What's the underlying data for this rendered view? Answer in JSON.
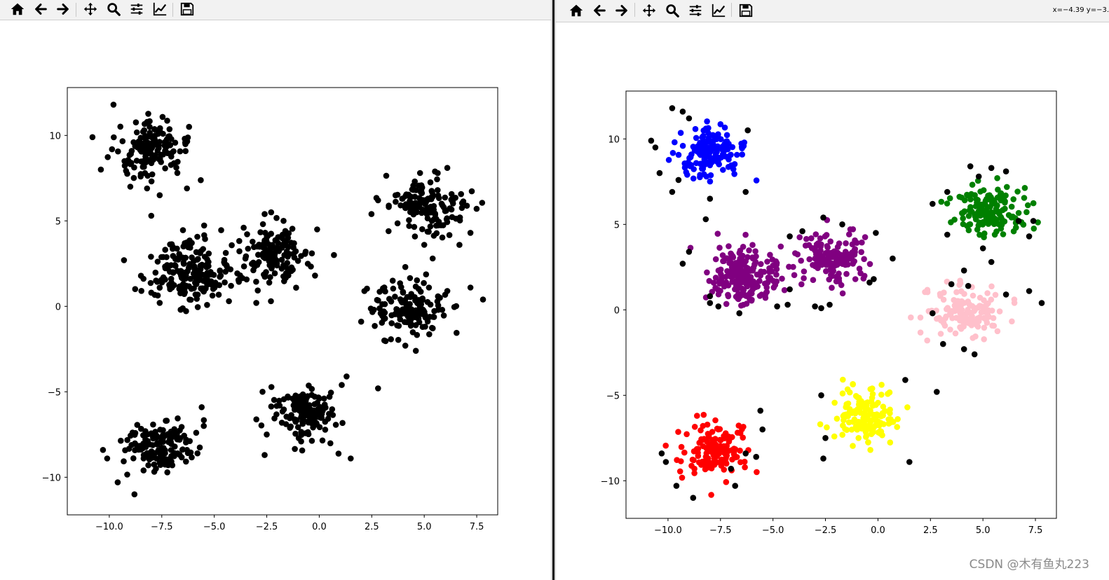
{
  "toolbar": {
    "icons": [
      "home-icon",
      "back-arrow-icon",
      "forward-arrow-icon",
      "pan-icon",
      "zoom-icon",
      "subplots-icon",
      "edit-axes-icon",
      "save-icon"
    ]
  },
  "right_window": {
    "coords_readout": "x=−4.39 y=−3."
  },
  "watermark": "CSDN @木有鱼丸223",
  "colors": {
    "background": "#ffffff",
    "axes_frame": "#000000",
    "unclustered_points": "#000000",
    "cluster_blue": "#0000ff",
    "cluster_purple": "#800080",
    "cluster_green": "#008000",
    "cluster_pink": "#ffc0cb",
    "cluster_red": "#ff0000",
    "cluster_yellow": "#ffff00"
  },
  "chart_data": [
    {
      "type": "scatter",
      "title": "",
      "xlabel": "",
      "ylabel": "",
      "xlim": [
        -12.0,
        8.5
      ],
      "ylim": [
        -12.2,
        12.8
      ],
      "xticks": [
        -10.0,
        -7.5,
        -5.0,
        -2.5,
        0.0,
        2.5,
        5.0,
        7.5
      ],
      "xtick_labels": [
        "−10.0",
        "−7.5",
        "−5.0",
        "−2.5",
        "0.0",
        "2.5",
        "5.0",
        "7.5"
      ],
      "yticks": [
        10,
        5,
        0,
        -5,
        -10
      ],
      "ytick_labels": [
        "10",
        "5",
        "0",
        "−5",
        "−10"
      ],
      "grid": false,
      "series": [
        {
          "color": "#000000",
          "clusters": [
            {
              "center": [
                -8.1,
                9.1
              ],
              "spread": [
                0.85,
                0.9
              ],
              "count": 140
            },
            {
              "center": [
                -6.3,
                2.0
              ],
              "spread": [
                0.95,
                0.9
              ],
              "count": 190
            },
            {
              "center": [
                -2.2,
                3.0
              ],
              "spread": [
                0.8,
                0.85
              ],
              "count": 140
            },
            {
              "center": [
                5.2,
                5.8
              ],
              "spread": [
                0.9,
                0.9
              ],
              "count": 140
            },
            {
              "center": [
                4.3,
                -0.2
              ],
              "spread": [
                0.95,
                0.8
              ],
              "count": 140
            },
            {
              "center": [
                -0.6,
                -6.2
              ],
              "spread": [
                0.75,
                0.8
              ],
              "count": 140
            },
            {
              "center": [
                -7.8,
                -8.2
              ],
              "spread": [
                0.85,
                0.85
              ],
              "count": 140
            }
          ]
        },
        {
          "color": "#000000",
          "points": [
            [
              -10.8,
              9.9
            ],
            [
              -10.4,
              8.0
            ],
            [
              -9.8,
              11.8
            ],
            [
              -9.0,
              7.0
            ],
            [
              -8.2,
              6.9
            ],
            [
              -7.6,
              6.5
            ],
            [
              -6.3,
              6.9
            ],
            [
              -6.2,
              10.5
            ],
            [
              -8.0,
              5.3
            ],
            [
              -9.3,
              2.7
            ],
            [
              -8.0,
              0.8
            ],
            [
              -7.6,
              0.2
            ],
            [
              -6.6,
              -0.2
            ],
            [
              -4.3,
              0.3
            ],
            [
              -3.6,
              4.6
            ],
            [
              -4.2,
              1.2
            ],
            [
              -2.6,
              5.4
            ],
            [
              -1.7,
              5.0
            ],
            [
              -0.1,
              4.5
            ],
            [
              0.7,
              3.0
            ],
            [
              -0.2,
              1.8
            ],
            [
              -2.3,
              0.3
            ],
            [
              -3.0,
              0.2
            ],
            [
              2.8,
              6.2
            ],
            [
              3.3,
              4.4
            ],
            [
              4.8,
              7.8
            ],
            [
              6.1,
              8.1
            ],
            [
              6.7,
              5.2
            ],
            [
              7.2,
              4.3
            ],
            [
              5.0,
              3.6
            ],
            [
              4.1,
              2.3
            ],
            [
              3.5,
              1.5
            ],
            [
              2.6,
              -0.2
            ],
            [
              3.1,
              -2.0
            ],
            [
              4.1,
              -2.3
            ],
            [
              4.6,
              -2.6
            ],
            [
              6.1,
              0.9
            ],
            [
              7.2,
              1.1
            ],
            [
              7.8,
              0.4
            ],
            [
              5.4,
              2.8
            ],
            [
              -2.7,
              -5.0
            ],
            [
              -2.5,
              -7.5
            ],
            [
              -2.6,
              -8.7
            ],
            [
              1.3,
              -4.1
            ],
            [
              1.5,
              -8.9
            ],
            [
              2.8,
              -4.8
            ],
            [
              -5.6,
              -5.9
            ],
            [
              -5.5,
              -7.0
            ],
            [
              -5.8,
              -8.6
            ],
            [
              -6.3,
              -8.4
            ],
            [
              -7.0,
              -9.3
            ],
            [
              -8.8,
              -11.0
            ],
            [
              -9.6,
              -10.3
            ],
            [
              -10.1,
              -8.9
            ],
            [
              -10.3,
              -8.4
            ],
            [
              -4.5,
              1.4
            ]
          ]
        }
      ]
    },
    {
      "type": "scatter",
      "title": "",
      "xlabel": "",
      "ylabel": "",
      "xlim": [
        -12.0,
        8.5
      ],
      "ylim": [
        -12.2,
        12.8
      ],
      "xticks": [
        -10.0,
        -7.5,
        -5.0,
        -2.5,
        0.0,
        2.5,
        5.0,
        7.5
      ],
      "xtick_labels": [
        "−10.0",
        "−7.5",
        "−5.0",
        "−2.5",
        "0.0",
        "2.5",
        "5.0",
        "7.5"
      ],
      "yticks": [
        10,
        5,
        0,
        -5,
        -10
      ],
      "ytick_labels": [
        "10",
        "5",
        "0",
        "−5",
        "−10"
      ],
      "grid": false,
      "series": [
        {
          "color": "#0000ff",
          "clusters": [
            {
              "center": [
                -8.1,
                9.1
              ],
              "spread": [
                0.8,
                0.8
              ],
              "count": 140
            }
          ]
        },
        {
          "color": "#800080",
          "clusters": [
            {
              "center": [
                -6.3,
                2.0
              ],
              "spread": [
                0.9,
                0.85
              ],
              "count": 190
            },
            {
              "center": [
                -2.2,
                3.0
              ],
              "spread": [
                0.75,
                0.8
              ],
              "count": 140
            }
          ]
        },
        {
          "color": "#008000",
          "clusters": [
            {
              "center": [
                5.2,
                5.8
              ],
              "spread": [
                0.85,
                0.85
              ],
              "count": 140
            }
          ]
        },
        {
          "color": "#ffc0cb",
          "clusters": [
            {
              "center": [
                4.3,
                -0.2
              ],
              "spread": [
                0.9,
                0.75
              ],
              "count": 140
            }
          ]
        },
        {
          "color": "#ffff00",
          "clusters": [
            {
              "center": [
                -0.6,
                -6.2
              ],
              "spread": [
                0.7,
                0.75
              ],
              "count": 140
            }
          ]
        },
        {
          "color": "#ff0000",
          "clusters": [
            {
              "center": [
                -7.8,
                -8.2
              ],
              "spread": [
                0.8,
                0.8
              ],
              "count": 140
            }
          ]
        },
        {
          "color": "#000000",
          "points": [
            [
              -10.8,
              9.9
            ],
            [
              -10.4,
              8.0
            ],
            [
              -10.6,
              9.5
            ],
            [
              -9.8,
              11.8
            ],
            [
              -9.3,
              11.6
            ],
            [
              -9.0,
              11.2
            ],
            [
              -9.5,
              7.6
            ],
            [
              -9.8,
              6.9
            ],
            [
              -8.0,
              6.5
            ],
            [
              -6.3,
              6.9
            ],
            [
              -6.2,
              10.5
            ],
            [
              -8.2,
              5.3
            ],
            [
              -9.3,
              2.7
            ],
            [
              -9.0,
              3.4
            ],
            [
              -8.0,
              0.8
            ],
            [
              -8.0,
              0.4
            ],
            [
              -7.6,
              0.2
            ],
            [
              -6.6,
              -0.2
            ],
            [
              -4.3,
              0.3
            ],
            [
              -4.8,
              0.2
            ],
            [
              -3.6,
              4.6
            ],
            [
              -4.2,
              1.2
            ],
            [
              -4.2,
              4.3
            ],
            [
              -2.6,
              5.4
            ],
            [
              -1.7,
              5.0
            ],
            [
              -0.1,
              4.5
            ],
            [
              0.7,
              3.0
            ],
            [
              -0.2,
              1.8
            ],
            [
              -0.4,
              1.6
            ],
            [
              -2.3,
              0.3
            ],
            [
              -2.7,
              0.1
            ],
            [
              -3.0,
              0.2
            ],
            [
              2.6,
              6.2
            ],
            [
              3.3,
              6.9
            ],
            [
              3.3,
              4.4
            ],
            [
              4.4,
              8.4
            ],
            [
              4.8,
              7.8
            ],
            [
              5.4,
              8.3
            ],
            [
              6.1,
              8.1
            ],
            [
              6.7,
              5.2
            ],
            [
              7.2,
              4.3
            ],
            [
              7.4,
              5.2
            ],
            [
              5.0,
              3.6
            ],
            [
              4.1,
              2.3
            ],
            [
              3.5,
              1.5
            ],
            [
              4.3,
              1.4
            ],
            [
              2.6,
              -0.2
            ],
            [
              3.1,
              -2.0
            ],
            [
              4.1,
              -2.3
            ],
            [
              4.6,
              -2.6
            ],
            [
              6.1,
              0.9
            ],
            [
              7.2,
              1.1
            ],
            [
              7.8,
              0.4
            ],
            [
              5.4,
              2.8
            ],
            [
              -2.7,
              -5.0
            ],
            [
              -2.5,
              -7.5
            ],
            [
              -2.6,
              -8.7
            ],
            [
              1.3,
              -4.1
            ],
            [
              1.5,
              -8.9
            ],
            [
              2.8,
              -4.8
            ],
            [
              -5.6,
              -5.9
            ],
            [
              -5.5,
              -7.0
            ],
            [
              -5.8,
              -8.6
            ],
            [
              -6.3,
              -8.4
            ],
            [
              -7.0,
              -9.3
            ],
            [
              -8.8,
              -11.0
            ],
            [
              -9.6,
              -10.3
            ],
            [
              -10.1,
              -8.9
            ],
            [
              -10.3,
              -8.4
            ],
            [
              -6.8,
              -10.3
            ]
          ]
        }
      ]
    }
  ]
}
